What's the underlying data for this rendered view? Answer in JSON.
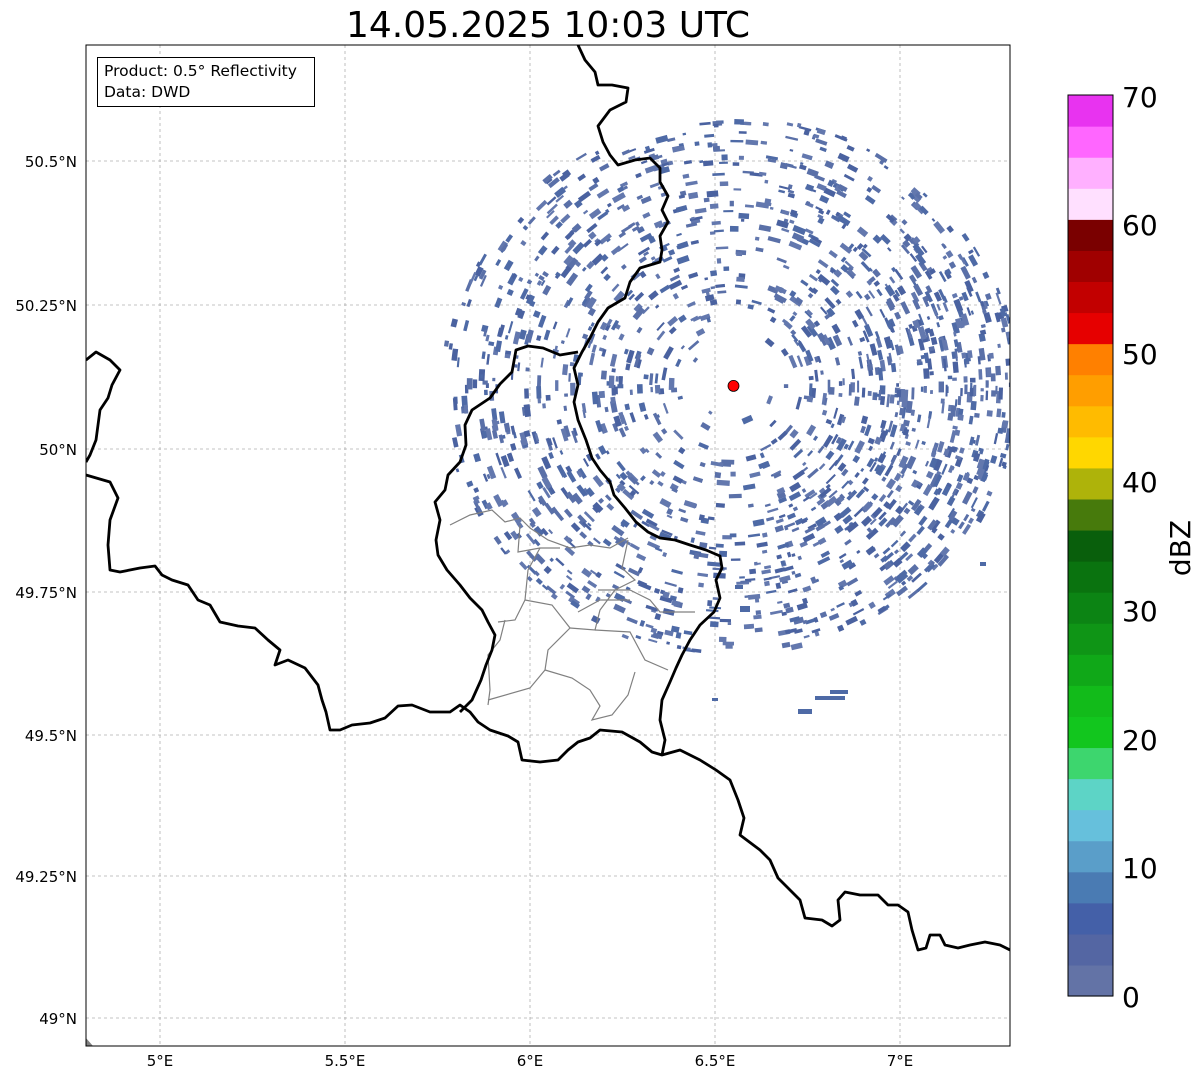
{
  "title": "14.05.2025 10:03 UTC",
  "info": {
    "product": "Product: 0.5° Reflectivity",
    "data": "Data: DWD"
  },
  "axes": {
    "lat_ticks": [
      "50.5°N",
      "50.25°N",
      "50°N",
      "49.75°N",
      "49.5°N",
      "49.25°N",
      "49°N"
    ],
    "lon_ticks": [
      "5°E",
      "5.5°E",
      "6°E",
      "6.5°E",
      "7°E"
    ]
  },
  "colorbar": {
    "label": "dBZ",
    "ticks": [
      "0",
      "10",
      "20",
      "30",
      "40",
      "50",
      "60",
      "70"
    ],
    "colors": [
      "#6373a6",
      "#5466a3",
      "#4460a8",
      "#4a7bb3",
      "#5a9ec9",
      "#66c0dc",
      "#5dd4c6",
      "#3dd66e",
      "#12c61e",
      "#12bb1a",
      "#10a818",
      "#0f9516",
      "#0c8414",
      "#0a730f",
      "#095f0c",
      "#477a0c",
      "#aeb30a",
      "#ffd700",
      "#ffbb00",
      "#ff9e00",
      "#ff8000",
      "#e60000",
      "#c20000",
      "#a00000",
      "#7a0000",
      "#ffe0ff",
      "#ffb0ff",
      "#ff66ff",
      "#e833f0"
    ]
  },
  "radar_site": {
    "lat": 50.11,
    "lon": 6.55,
    "color": "#ff0000"
  },
  "colors": {
    "echo": "#4e6aa6",
    "border": "#000000",
    "admin": "#808080"
  }
}
